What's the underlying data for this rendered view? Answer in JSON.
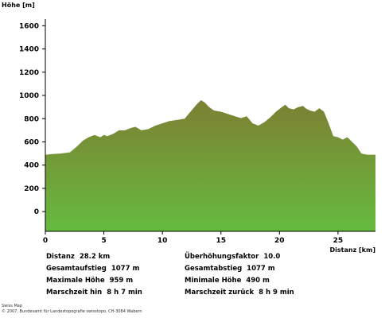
{
  "chart_data": {
    "type": "area",
    "ylabel": "Höhe [m]",
    "xlabel": "Distanz [km]",
    "xlim": [
      0,
      28.2
    ],
    "ylim": [
      -170,
      1630
    ],
    "y_ticks": [
      0,
      200,
      400,
      600,
      800,
      1000,
      1200,
      1400,
      1600
    ],
    "x_ticks": [
      0,
      5,
      10,
      15,
      20,
      25
    ],
    "grid": false,
    "colors": {
      "fill_top": "#7d7f33",
      "fill_bottom": "#66bb3f"
    },
    "x": [
      0,
      0.6,
      1.3,
      2.1,
      2.7,
      3.2,
      3.7,
      4.2,
      4.7,
      5.0,
      5.3,
      5.8,
      6.3,
      6.8,
      7.3,
      7.7,
      8.2,
      8.8,
      9.4,
      10.0,
      10.6,
      11.3,
      11.9,
      12.4,
      12.9,
      13.3,
      13.6,
      14.0,
      14.4,
      15.0,
      15.6,
      16.2,
      16.7,
      17.2,
      17.7,
      18.2,
      18.7,
      19.2,
      19.7,
      20.2,
      20.5,
      20.8,
      21.2,
      21.6,
      22.0,
      22.3,
      22.6,
      23.0,
      23.4,
      23.8,
      24.2,
      24.6,
      25.0,
      25.4,
      25.8,
      26.2,
      26.6,
      27.0,
      27.5,
      28.2
    ],
    "y": [
      490,
      495,
      500,
      510,
      560,
      610,
      640,
      660,
      640,
      660,
      650,
      670,
      700,
      700,
      720,
      730,
      700,
      710,
      740,
      760,
      780,
      790,
      800,
      860,
      920,
      959,
      940,
      900,
      870,
      860,
      840,
      820,
      805,
      820,
      760,
      740,
      770,
      810,
      860,
      900,
      920,
      890,
      880,
      900,
      910,
      885,
      870,
      860,
      890,
      860,
      760,
      650,
      640,
      620,
      640,
      600,
      560,
      500,
      490,
      490
    ]
  },
  "stats": [
    {
      "label": "Distanz",
      "value": "28.2 km"
    },
    {
      "label": "Gesamtaufstieg",
      "value": "1077 m"
    },
    {
      "label": "Maximale Höhe",
      "value": "959 m"
    },
    {
      "label": "Marschzeit hin",
      "value": "8 h 7 min"
    },
    {
      "label": "Überhöhungsfaktor",
      "value": "10.0"
    },
    {
      "label": "Gesamtabstieg",
      "value": "1077 m"
    },
    {
      "label": "Minimale Höhe",
      "value": "490 m"
    },
    {
      "label": "Marschzeit zurück",
      "value": "8 h 9 min"
    }
  ],
  "footer": {
    "line1": "Swiss Map",
    "line2": "© 2007, Bundesamt für Landestopografie swisstopo, CH-3084 Wabern"
  }
}
